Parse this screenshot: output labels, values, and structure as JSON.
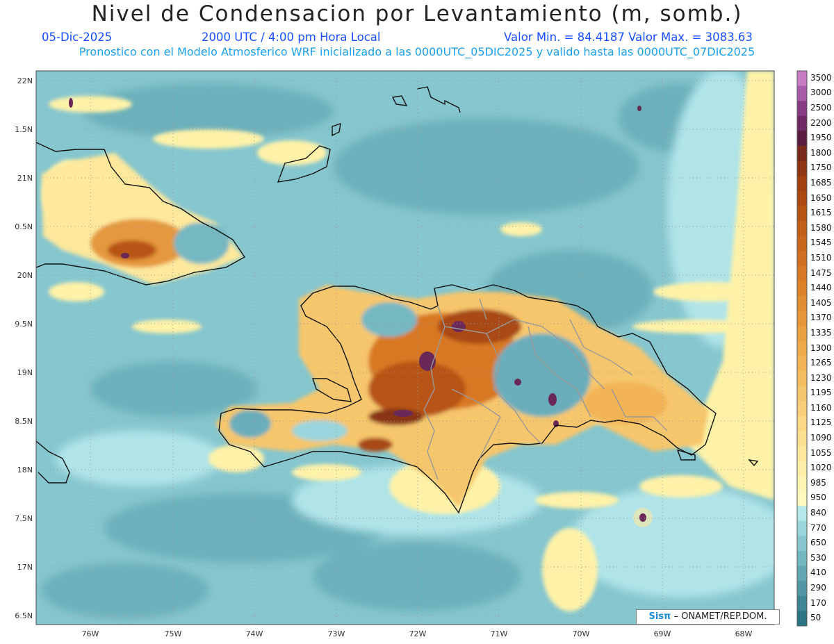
{
  "header": {
    "title": "Nivel de Condensacion por Levantamiento (m, somb.)",
    "date": "05-Dic-2025",
    "time": "2000 UTC / 4:00 pm Hora Local",
    "minmax": "Valor Min. = 84.4187  Valor Max. = 3083.63",
    "model_line": "Pronostico con el Modelo Atmosferico WRF inicializado a las 0000UTC_05DIC2025 y valido hasta las  0000UTC_07DIC2025"
  },
  "axes": {
    "lon_labels": [
      "76W",
      "75W",
      "74W",
      "73W",
      "72W",
      "71W",
      "70W",
      "69W",
      "68W"
    ],
    "lat_labels": [
      "22N",
      "1.5N",
      "21N",
      "0.5N",
      "20N",
      "9.5N",
      "19N",
      "8.5N",
      "18N",
      "7.5N",
      "17N",
      "6.5N"
    ]
  },
  "colorbar": {
    "levels": [
      "3500",
      "3000",
      "2500",
      "2200",
      "1950",
      "1800",
      "1750",
      "1685",
      "1650",
      "1615",
      "1580",
      "1545",
      "1510",
      "1475",
      "1440",
      "1405",
      "1370",
      "1335",
      "1300",
      "1265",
      "1230",
      "1195",
      "1160",
      "1125",
      "1090",
      "1055",
      "1020",
      "985",
      "950",
      "840",
      "770",
      "650",
      "530",
      "410",
      "290",
      "170",
      "50"
    ],
    "colors": [
      "#c77cc4",
      "#a95aa8",
      "#8a3c83",
      "#6e2a62",
      "#5a1c40",
      "#7a2a1a",
      "#8f3614",
      "#a04010",
      "#ad4a12",
      "#b85414",
      "#c25e18",
      "#ca661c",
      "#d26e20",
      "#d87824",
      "#de8228",
      "#e28c30",
      "#e69638",
      "#eaa040",
      "#eeaa4a",
      "#f2b454",
      "#f4bd60",
      "#f6c66c",
      "#f8cf78",
      "#fad884",
      "#fbe090",
      "#fde89c",
      "#fdeea8",
      "#fef4b4",
      "#fff8bc",
      "#b4e8ea",
      "#98d6dc",
      "#86c6ce",
      "#74b6c0",
      "#62a6b2",
      "#5096a4",
      "#3e8696",
      "#2c7686"
    ]
  },
  "credit": {
    "brand": "Sisπ",
    "text": "– ONAMET/REP.DOM."
  },
  "colors": {
    "ocean_base": "#86c6ce",
    "yellow": "#fef2a8",
    "orange": "#e39440",
    "brown": "#a84a16",
    "purple": "#6a2858"
  }
}
